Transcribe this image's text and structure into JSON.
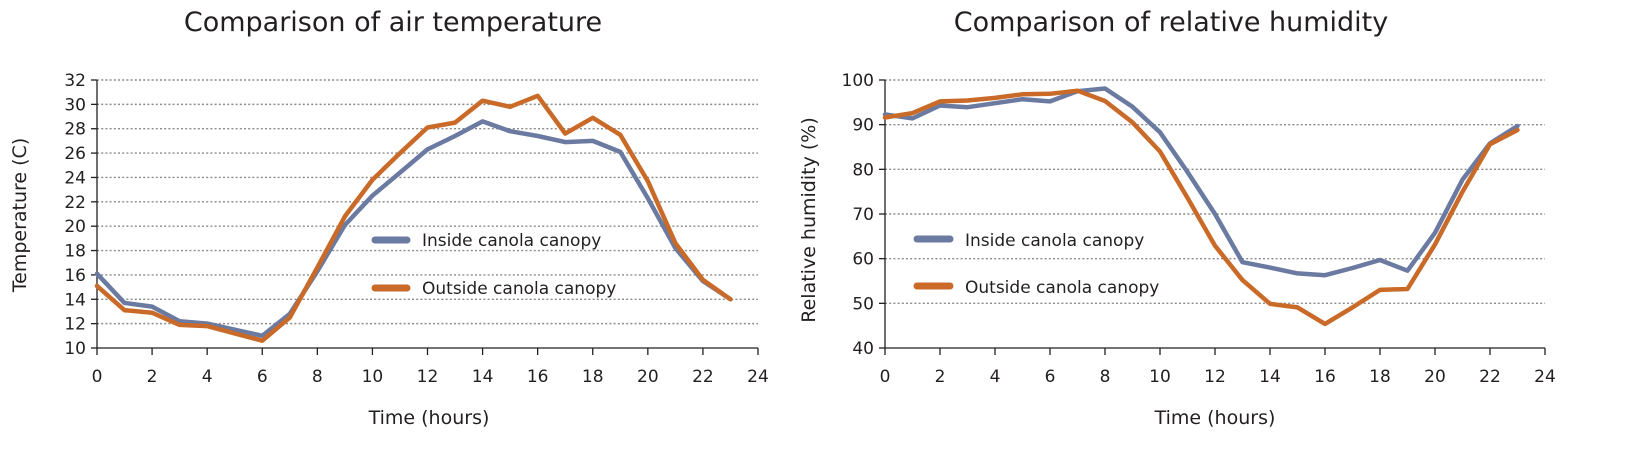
{
  "chart_data": [
    {
      "type": "line",
      "title": "Comparison of air temperature",
      "xlabel": "Time (hours)",
      "ylabel": "Temperature (C)",
      "xlim": [
        0,
        24
      ],
      "ylim": [
        10,
        32
      ],
      "x_ticks": [
        "0",
        "2",
        "4",
        "6",
        "8",
        "10",
        "12",
        "14",
        "16",
        "18",
        "20",
        "22",
        "24"
      ],
      "y_ticks": [
        "10",
        "12",
        "14",
        "16",
        "18",
        "20",
        "22",
        "24",
        "26",
        "28",
        "30",
        "32"
      ],
      "grid": true,
      "legend_position": "center-right",
      "x": [
        0,
        1,
        2,
        3,
        4,
        5,
        6,
        7,
        8,
        9,
        10,
        11,
        12,
        13,
        14,
        15,
        16,
        17,
        18,
        19,
        20,
        21,
        22,
        23
      ],
      "series": [
        {
          "name": "Inside canola canopy",
          "color": "#6b7aa1",
          "values": [
            16.1,
            13.7,
            13.4,
            12.2,
            12.0,
            11.5,
            11.0,
            12.8,
            16.3,
            20.1,
            22.5,
            24.4,
            26.3,
            27.4,
            28.6,
            27.8,
            27.4,
            26.9,
            27.0,
            26.1,
            22.3,
            18.2,
            15.5,
            14.0
          ]
        },
        {
          "name": "Outside canola canopy",
          "color": "#c96a28",
          "values": [
            15.1,
            13.1,
            12.9,
            11.9,
            11.8,
            11.2,
            10.6,
            12.5,
            16.6,
            20.8,
            23.8,
            26.0,
            28.1,
            28.5,
            30.3,
            29.8,
            30.7,
            27.6,
            28.9,
            27.5,
            23.7,
            18.6,
            15.6,
            14.0
          ]
        }
      ]
    },
    {
      "type": "line",
      "title": "Comparison of relative humidity",
      "xlabel": "Time (hours)",
      "ylabel": "Relative humidity (%)",
      "xlim": [
        0,
        24
      ],
      "ylim": [
        40,
        100
      ],
      "x_ticks": [
        "0",
        "2",
        "4",
        "6",
        "8",
        "10",
        "12",
        "14",
        "16",
        "18",
        "20",
        "22",
        "24"
      ],
      "y_ticks": [
        "40",
        "50",
        "60",
        "70",
        "80",
        "90",
        "100"
      ],
      "grid": true,
      "legend_position": "center-left",
      "x": [
        0,
        1,
        2,
        3,
        4,
        5,
        6,
        7,
        8,
        9,
        10,
        11,
        12,
        13,
        14,
        15,
        16,
        17,
        18,
        19,
        20,
        21,
        22,
        23
      ],
      "series": [
        {
          "name": "Inside canola canopy",
          "color": "#6b7aa1",
          "values": [
            92.3,
            91.4,
            94.3,
            93.9,
            94.8,
            95.7,
            95.2,
            97.5,
            98.1,
            94.0,
            88.3,
            79.4,
            70.0,
            59.2,
            58.0,
            56.7,
            56.3,
            57.9,
            59.7,
            57.3,
            65.8,
            77.7,
            85.8,
            89.7
          ]
        },
        {
          "name": "Outside canola canopy",
          "color": "#c96a28",
          "values": [
            91.6,
            92.6,
            95.2,
            95.4,
            96.0,
            96.8,
            96.9,
            97.6,
            95.3,
            90.5,
            84.0,
            73.6,
            62.9,
            55.2,
            49.9,
            49.1,
            45.4,
            49.1,
            53.0,
            53.2,
            63.2,
            75.0,
            85.6,
            88.8
          ]
        }
      ]
    }
  ]
}
